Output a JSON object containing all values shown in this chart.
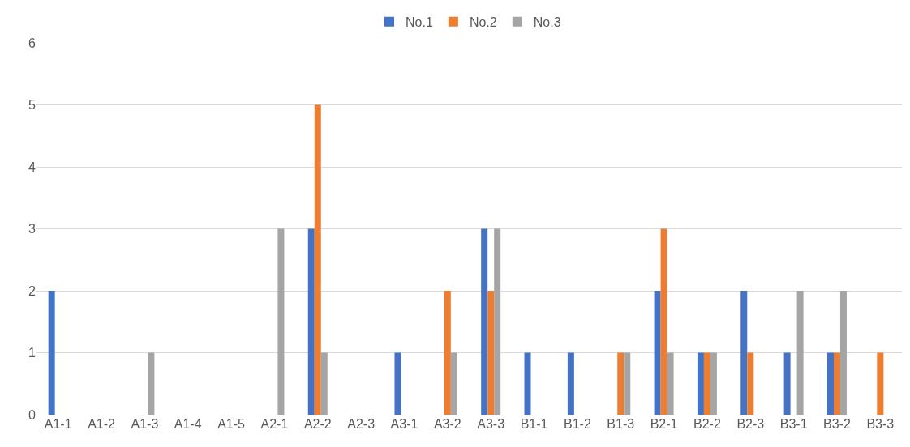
{
  "chart_data": {
    "type": "bar",
    "categories": [
      "A1-1",
      "A1-2",
      "A1-3",
      "A1-4",
      "A1-5",
      "A2-1",
      "A2-2",
      "A2-3",
      "A3-1",
      "A3-2",
      "A3-3",
      "B1-1",
      "B1-2",
      "B1-3",
      "B2-1",
      "B2-2",
      "B2-3",
      "B3-1",
      "B3-2",
      "B3-3"
    ],
    "series": [
      {
        "name": "No.1",
        "color": "#4472c4",
        "values": [
          2,
          0,
          0,
          0,
          0,
          0,
          3,
          0,
          1,
          0,
          3,
          1,
          1,
          0,
          2,
          1,
          2,
          1,
          1,
          0
        ]
      },
      {
        "name": "No.2",
        "color": "#ed7d31",
        "values": [
          0,
          0,
          0,
          0,
          0,
          0,
          5,
          0,
          0,
          2,
          2,
          0,
          0,
          1,
          3,
          1,
          1,
          0,
          1,
          1
        ]
      },
      {
        "name": "No.3",
        "color": "#a5a5a5",
        "values": [
          0,
          0,
          1,
          0,
          0,
          3,
          1,
          0,
          0,
          1,
          3,
          0,
          0,
          1,
          1,
          1,
          0,
          2,
          2,
          0
        ]
      }
    ],
    "ylim": [
      0,
      6
    ],
    "yticks": [
      0,
      1,
      2,
      3,
      4,
      5,
      6
    ],
    "grid": "y",
    "legend": "top"
  }
}
